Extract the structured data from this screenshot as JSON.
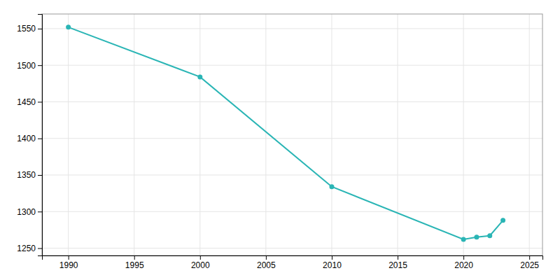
{
  "chart_data": {
    "type": "line",
    "x": [
      1990,
      2000,
      2010,
      2020,
      2021,
      2022,
      2023
    ],
    "values": [
      1552,
      1484,
      1334,
      1262,
      1265,
      1267,
      1288
    ],
    "color": "#2ab5b5",
    "marker": "circle",
    "xlim": [
      1988,
      2026
    ],
    "ylim": [
      1240,
      1570
    ],
    "xticks": [
      1990,
      1995,
      2000,
      2005,
      2010,
      2015,
      2020,
      2025
    ],
    "yticks": [
      1250,
      1300,
      1350,
      1400,
      1450,
      1500,
      1550
    ],
    "grid": true
  }
}
